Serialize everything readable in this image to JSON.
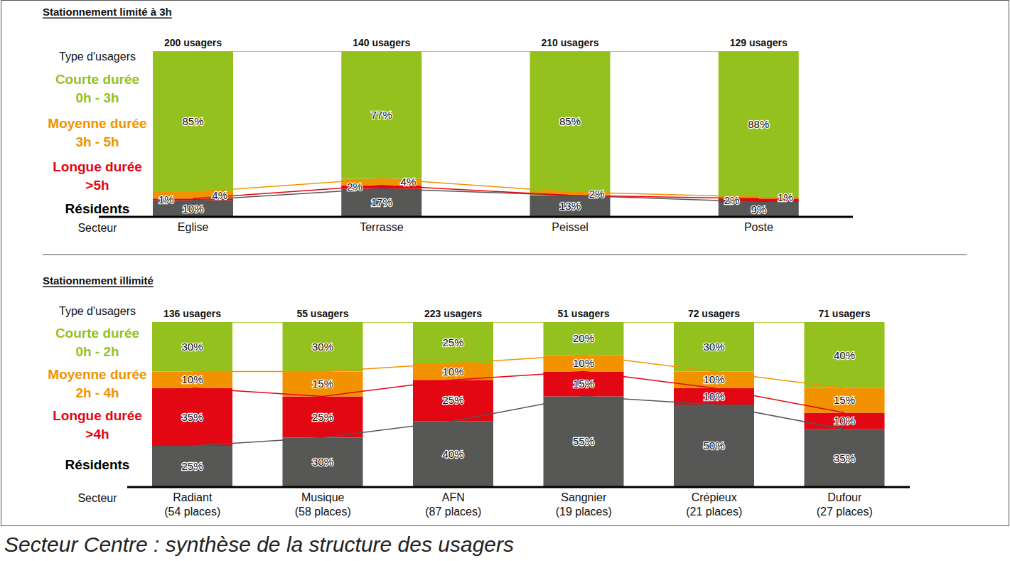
{
  "caption": "Secteur Centre : synthèse de la structure des usagers",
  "chart_data": [
    {
      "type": "bar",
      "title": "Stationnement limité à 3h",
      "stacked": true,
      "data_labels": true,
      "tick_labels": "x",
      "legend": "left",
      "legend_title": "Type d'usagers",
      "xlabel": "Secteur",
      "categories": [
        "Eglise",
        "Terrasse",
        "Peissel",
        "Poste"
      ],
      "total_labels": [
        "200 usagers",
        "140 usagers",
        "210 usagers",
        "129 usagers"
      ],
      "ylim": [
        0,
        100
      ],
      "series": [
        {
          "name": "Résidents",
          "color": "#575756",
          "values": [
            10,
            17,
            13,
            9
          ],
          "value_labels": [
            "10%",
            "17%",
            "13%",
            "9%"
          ]
        },
        {
          "name": "Longue durée\n>5h",
          "color": "#e30613",
          "values": [
            1,
            2,
            null,
            2
          ],
          "value_labels": [
            "1%",
            "2%",
            null,
            "2%"
          ]
        },
        {
          "name": "Moyenne durée\n3h - 5h",
          "color": "#f39200",
          "values": [
            4,
            4,
            2,
            1
          ],
          "value_labels": [
            "4%",
            "4%",
            "2%",
            "1%"
          ]
        },
        {
          "name": "Courte durée\n0h - 3h",
          "color": "#95c11f",
          "values": [
            85,
            77,
            85,
            88
          ],
          "value_labels": [
            "85%",
            "77%",
            "85%",
            "88%"
          ]
        }
      ]
    },
    {
      "type": "bar",
      "title": "Stationnement illimité",
      "stacked": true,
      "data_labels": true,
      "tick_labels": "x",
      "legend": "left",
      "legend_title": "Type d'usagers",
      "xlabel": "Secteur",
      "categories": [
        "Radiant\n(54 places)",
        "Musique\n(58 places)",
        "AFN\n(87 places)",
        "Sangnier\n(19 places)",
        "Crépieux\n(21 places)",
        "Dufour\n(27 places)"
      ],
      "total_labels": [
        "136 usagers",
        "55 usagers",
        "223 usagers",
        "51 usagers",
        "72 usagers",
        "71 usagers"
      ],
      "ylim": [
        0,
        100
      ],
      "series": [
        {
          "name": "Résidents",
          "color": "#575756",
          "values": [
            25,
            30,
            40,
            55,
            50,
            35
          ],
          "value_labels": [
            "25%",
            "30%",
            "40%",
            "55%",
            "50%",
            "35%"
          ]
        },
        {
          "name": "Longue durée\n>4h",
          "color": "#e30613",
          "values": [
            35,
            25,
            25,
            15,
            10,
            10
          ],
          "value_labels": [
            "35%",
            "25%",
            "25%",
            "15%",
            "10%",
            "10%"
          ]
        },
        {
          "name": "Moyenne durée\n2h - 4h",
          "color": "#f39200",
          "values": [
            10,
            15,
            10,
            10,
            10,
            15
          ],
          "value_labels": [
            "10%",
            "15%",
            "10%",
            "10%",
            "10%",
            "15%"
          ]
        },
        {
          "name": "Courte durée\n0h - 2h",
          "color": "#95c11f",
          "values": [
            30,
            30,
            25,
            20,
            30,
            40
          ],
          "value_labels": [
            "30%",
            "30%",
            "25%",
            "20%",
            "30%",
            "40%"
          ]
        }
      ]
    }
  ]
}
